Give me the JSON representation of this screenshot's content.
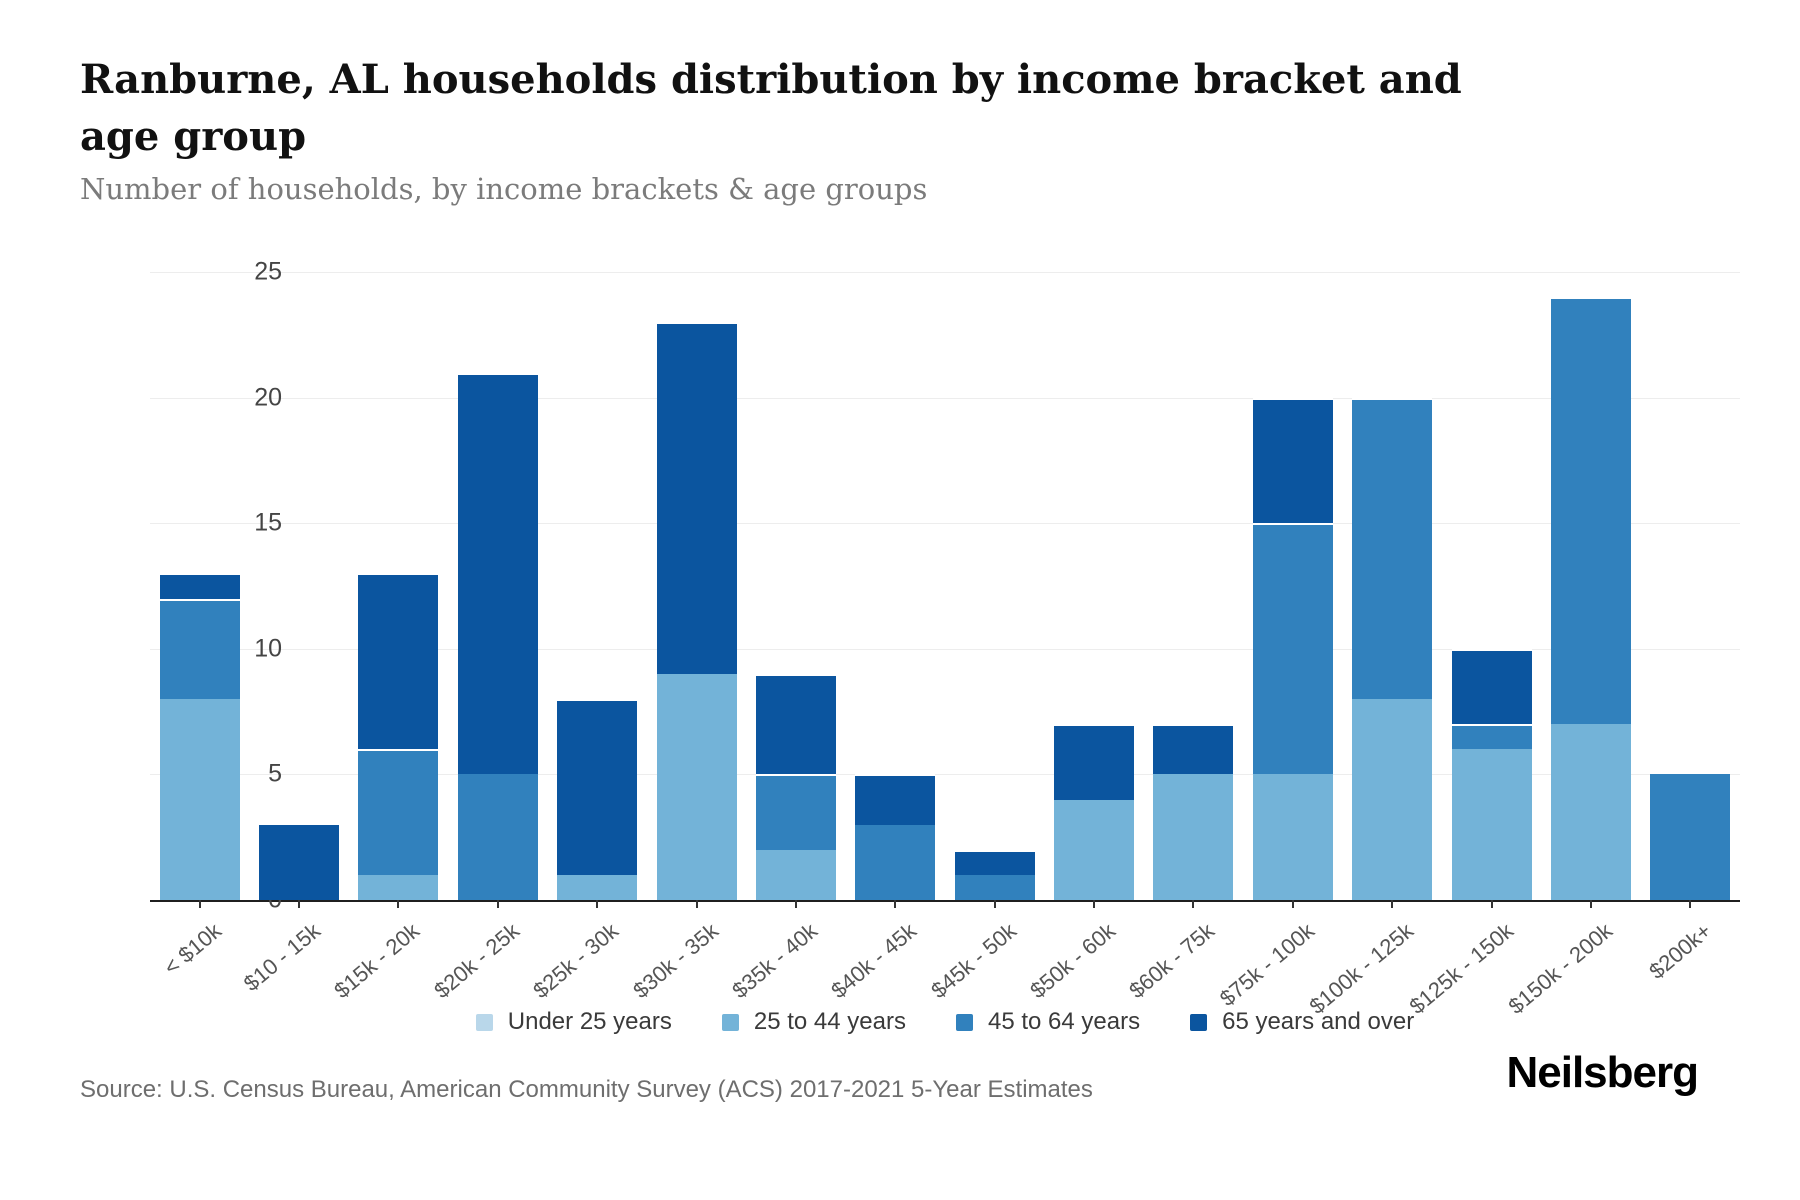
{
  "header": {
    "title": "Ranburne, AL households distribution by income bracket and age group",
    "subtitle": "Number of households, by income brackets & age groups"
  },
  "chart_data": {
    "type": "bar",
    "stacked": true,
    "title": "Ranburne, AL households distribution by income bracket and age group",
    "subtitle": "Number of households, by income brackets & age groups",
    "xlabel": "",
    "ylabel": "",
    "ylim": [
      0,
      25
    ],
    "yticks": [
      0,
      5,
      10,
      15,
      20,
      25
    ],
    "grid": true,
    "legend_position": "bottom",
    "categories": [
      "< $10k",
      "$10 - 15k",
      "$15k - 20k",
      "$20k - 25k",
      "$25k - 30k",
      "$30k - 35k",
      "$35k - 40k",
      "$40k - 45k",
      "$45k - 50k",
      "$50k - 60k",
      "$60k - 75k",
      "$75k - 100k",
      "$100k - 125k",
      "$125k - 150k",
      "$150k - 200k",
      "$200k+"
    ],
    "series": [
      {
        "name": "Under 25 years",
        "color": "#b9d7ea",
        "values": [
          0,
          0,
          0,
          0,
          0,
          0,
          0,
          0,
          0,
          0,
          0,
          0,
          0,
          0,
          0,
          0
        ]
      },
      {
        "name": "25 to 44 years",
        "color": "#73b3d8",
        "values": [
          8,
          0,
          1,
          0,
          1,
          9,
          2,
          0,
          0,
          4,
          5,
          5,
          8,
          6,
          7,
          0
        ]
      },
      {
        "name": "45 to 64 years",
        "color": "#3181bd",
        "values": [
          4,
          0,
          5,
          5,
          0,
          0,
          3,
          3,
          1,
          0,
          0,
          10,
          12,
          1,
          17,
          5
        ]
      },
      {
        "name": "65 years and over",
        "color": "#0b559f",
        "values": [
          1,
          3,
          7,
          16,
          7,
          14,
          4,
          2,
          1,
          3,
          2,
          5,
          0,
          3,
          0,
          0
        ]
      }
    ],
    "totals": [
      13,
      3,
      13,
      21,
      8,
      23,
      9,
      5,
      2,
      7,
      7,
      20,
      20,
      10,
      24,
      5
    ]
  },
  "axis": {
    "ytick_labels": [
      "0",
      "5",
      "10",
      "15",
      "20",
      "25"
    ]
  },
  "footer": {
    "source": "Source: U.S. Census Bureau, American Community Survey (ACS) 2017-2021 5-Year Estimates",
    "logo": "Neilsberg"
  },
  "style": {
    "axis_color": "#1f1f1f",
    "gridline_color": "#ededed",
    "ylabel_color": "#454545",
    "xlabel_color": "#555555"
  }
}
